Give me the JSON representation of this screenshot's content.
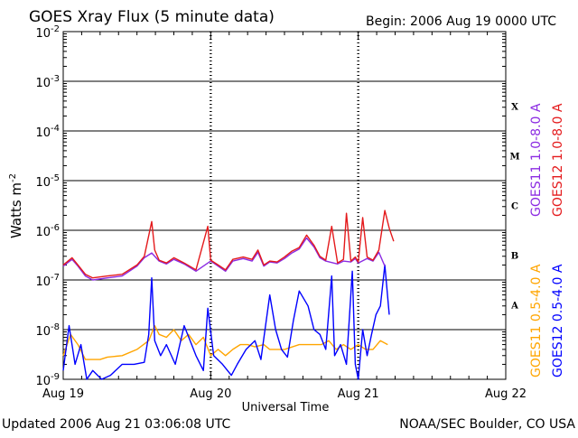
{
  "chart_data": {
    "type": "line",
    "title": "GOES Xray Flux (5 minute data)",
    "begin_label": "Begin:  2006 Aug 19 0000 UTC",
    "xlabel": "Universal Time",
    "ylabel": "Watts m",
    "ylabel_superscript": "-2",
    "y_log_scale": true,
    "ylim": [
      1e-09,
      0.01
    ],
    "xlim_days": [
      0,
      3
    ],
    "x_ticks": [
      "Aug 19",
      "Aug 20",
      "Aug 21",
      "Aug 22"
    ],
    "y_ticks": [
      {
        "base": "10",
        "exp": "-2"
      },
      {
        "base": "10",
        "exp": "-3"
      },
      {
        "base": "10",
        "exp": "-4"
      },
      {
        "base": "10",
        "exp": "-5"
      },
      {
        "base": "10",
        "exp": "-6"
      },
      {
        "base": "10",
        "exp": "-7"
      },
      {
        "base": "10",
        "exp": "-8"
      },
      {
        "base": "10",
        "exp": "-9"
      }
    ],
    "flare_classes": [
      "X",
      "M",
      "C",
      "B",
      "A"
    ],
    "grid": true,
    "legend_right": [
      {
        "label": "GOES11 1.0-8.0 A",
        "color": "#8b2be2"
      },
      {
        "label": "GOES12 1.0-8.0 A",
        "color": "#e41a1c"
      },
      {
        "label": "GOES11 0.5-4.0 A",
        "color": "#ffa500"
      },
      {
        "label": "GOES12 0.5-4.0 A",
        "color": "#0000ff"
      }
    ],
    "series": [
      {
        "name": "GOES12 1.0-8.0 A",
        "color": "#e41a1c",
        "x": [
          0.0,
          0.06,
          0.1,
          0.15,
          0.2,
          0.3,
          0.4,
          0.5,
          0.55,
          0.6,
          0.62,
          0.65,
          0.7,
          0.75,
          0.82,
          0.9,
          0.98,
          1.0,
          1.05,
          1.1,
          1.15,
          1.22,
          1.28,
          1.32,
          1.36,
          1.4,
          1.45,
          1.5,
          1.55,
          1.6,
          1.65,
          1.7,
          1.74,
          1.78,
          1.82,
          1.86,
          1.9,
          1.92,
          1.95,
          1.98,
          2.0,
          2.03,
          2.06,
          2.1,
          2.14,
          2.18,
          2.21,
          2.24
        ],
        "y": [
          2e-07,
          2.8e-07,
          2e-07,
          1.3e-07,
          1.1e-07,
          1.2e-07,
          1.3e-07,
          2e-07,
          3e-07,
          1.5e-06,
          4e-07,
          2.5e-07,
          2.2e-07,
          2.8e-07,
          2.2e-07,
          1.6e-07,
          1.2e-06,
          2.5e-07,
          2e-07,
          1.6e-07,
          2.6e-07,
          2.9e-07,
          2.6e-07,
          4e-07,
          2e-07,
          2.4e-07,
          2.3e-07,
          2.9e-07,
          3.8e-07,
          4.5e-07,
          8e-07,
          5e-07,
          3e-07,
          2.5e-07,
          1.2e-06,
          2.2e-07,
          2.6e-07,
          2.2e-06,
          2.4e-07,
          2.9e-07,
          2.3e-07,
          1.8e-06,
          2.9e-07,
          2.5e-07,
          4e-07,
          2.5e-06,
          1.1e-06,
          6e-07
        ]
      },
      {
        "name": "GOES11 1.0-8.0 A",
        "color": "#8b2be2",
        "x": [
          0.0,
          0.06,
          0.1,
          0.15,
          0.2,
          0.3,
          0.4,
          0.5,
          0.55,
          0.6,
          0.65,
          0.7,
          0.75,
          0.82,
          0.9,
          1.0,
          1.05,
          1.1,
          1.15,
          1.22,
          1.28,
          1.32,
          1.36,
          1.4,
          1.45,
          1.5,
          1.55,
          1.6,
          1.65,
          1.7,
          1.74,
          1.78,
          1.86,
          1.9,
          1.95,
          1.98,
          2.0,
          2.06,
          2.1,
          2.14,
          2.18
        ],
        "y": [
          1.9e-07,
          2.6e-07,
          1.9e-07,
          1.2e-07,
          1e-07,
          1.1e-07,
          1.2e-07,
          1.9e-07,
          2.8e-07,
          3.5e-07,
          2.4e-07,
          2.1e-07,
          2.6e-07,
          2.1e-07,
          1.5e-07,
          2.4e-07,
          1.9e-07,
          1.5e-07,
          2.4e-07,
          2.7e-07,
          2.4e-07,
          3.6e-07,
          1.9e-07,
          2.3e-07,
          2.2e-07,
          2.7e-07,
          3.5e-07,
          4.2e-07,
          7e-07,
          4.6e-07,
          2.8e-07,
          2.4e-07,
          2.1e-07,
          2.4e-07,
          2.3e-07,
          2.7e-07,
          2.2e-07,
          2.7e-07,
          2.4e-07,
          3.6e-07,
          1.9e-07
        ]
      },
      {
        "name": "GOES11 0.5-4.0 A",
        "color": "#ffa500",
        "x": [
          0.0,
          0.05,
          0.1,
          0.15,
          0.2,
          0.25,
          0.3,
          0.4,
          0.5,
          0.58,
          0.62,
          0.65,
          0.7,
          0.75,
          0.8,
          0.85,
          0.9,
          0.95,
          1.0,
          1.05,
          1.1,
          1.15,
          1.2,
          1.25,
          1.3,
          1.36,
          1.4,
          1.5,
          1.6,
          1.7,
          1.75,
          1.8,
          1.85,
          1.9,
          1.95,
          2.0,
          2.05,
          2.1,
          2.15,
          2.2
        ],
        "y": [
          3e-09,
          8e-09,
          5e-09,
          2.5e-09,
          2.5e-09,
          2.5e-09,
          2.8e-09,
          3e-09,
          4e-09,
          6e-09,
          1.2e-08,
          8e-09,
          7e-09,
          1e-08,
          6e-09,
          8e-09,
          5e-09,
          7e-09,
          3e-09,
          4e-09,
          3e-09,
          4e-09,
          5e-09,
          5e-09,
          4.5e-09,
          5e-09,
          4e-09,
          4e-09,
          5e-09,
          5e-09,
          5e-09,
          6e-09,
          4e-09,
          5e-09,
          4e-09,
          5e-09,
          4e-09,
          4e-09,
          6e-09,
          5e-09
        ]
      },
      {
        "name": "GOES12 0.5-4.0 A",
        "color": "#0000ff",
        "x": [
          0.0,
          0.04,
          0.08,
          0.12,
          0.16,
          0.2,
          0.26,
          0.32,
          0.4,
          0.48,
          0.55,
          0.58,
          0.6,
          0.62,
          0.66,
          0.7,
          0.76,
          0.82,
          0.86,
          0.9,
          0.95,
          0.98,
          1.02,
          1.08,
          1.14,
          1.18,
          1.24,
          1.3,
          1.34,
          1.4,
          1.44,
          1.48,
          1.52,
          1.56,
          1.6,
          1.66,
          1.7,
          1.74,
          1.78,
          1.82,
          1.84,
          1.88,
          1.92,
          1.96,
          1.98,
          2.0,
          2.03,
          2.06,
          2.09,
          2.12,
          2.15,
          2.18,
          2.21
        ],
        "y": [
          1.5e-09,
          1.2e-08,
          2e-09,
          5e-09,
          1e-09,
          1.5e-09,
          1e-09,
          1.2e-09,
          2e-09,
          2e-09,
          2.2e-09,
          8e-09,
          1.1e-07,
          6e-09,
          3e-09,
          5e-09,
          2e-09,
          1.2e-08,
          6e-09,
          3e-09,
          1.5e-09,
          2.7e-08,
          3e-09,
          2e-09,
          1.2e-09,
          2e-09,
          4e-09,
          6e-09,
          2.5e-09,
          5e-08,
          1e-08,
          4e-09,
          2.8e-09,
          1.5e-08,
          6e-08,
          3e-08,
          1e-08,
          8e-09,
          4e-09,
          1.2e-07,
          3e-09,
          5e-09,
          2e-09,
          1.5e-07,
          2e-09,
          1e-09,
          1e-08,
          3e-09,
          8e-09,
          2e-08,
          3e-08,
          2e-07,
          2e-08
        ]
      }
    ]
  },
  "footer": {
    "updated": "Updated 2006 Aug 21 03:06:08 UTC",
    "credit": "NOAA/SEC Boulder, CO USA"
  }
}
